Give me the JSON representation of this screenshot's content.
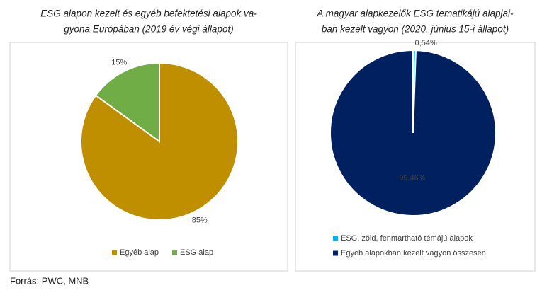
{
  "chart_data": [
    {
      "type": "pie",
      "title": [
        "ESG alapon kezelt és egyéb befektetési alapok va-",
        "gyona Európában (2019 év végi állapot)"
      ],
      "categories": [
        "Egyéb alap",
        "ESG alap"
      ],
      "values": [
        85,
        15
      ],
      "value_labels": [
        "85%",
        "15%"
      ],
      "colors": [
        "#bf8f00",
        "#70ad47"
      ],
      "legend": "bottom"
    },
    {
      "type": "pie",
      "title": [
        "A magyar alapkezelők ESG tematikájú alapjai-",
        "ban kezelt vagyon (2020. június 15-i állapot)"
      ],
      "categories": [
        "ESG, zöld, fenntartható témájú alapok",
        "Egyéb alapokban kezelt vagyon összesen"
      ],
      "values": [
        0.54,
        99.46
      ],
      "value_labels": [
        "0,54%",
        "99,46%"
      ],
      "colors": [
        "#00b0f0",
        "#002060"
      ],
      "legend": "bottom"
    }
  ],
  "source": "Forrás: PWC, MNB"
}
